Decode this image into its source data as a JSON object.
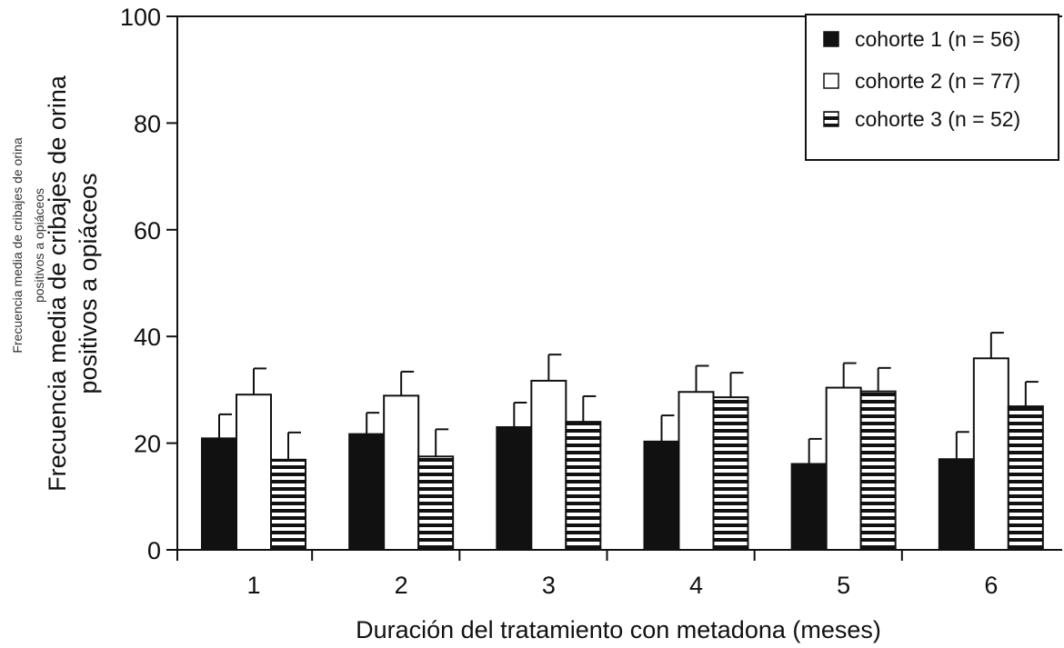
{
  "chart_data": {
    "type": "bar",
    "title": "",
    "xlabel": "Duración del tratamiento con metadona (meses)",
    "ylabel_lines": [
      "Frecuencia media de cribajes de orina",
      "positivos a opiáceos"
    ],
    "ylabel_small_lines": [
      "Frecuencia media de cribajes de orina",
      "positivos a opiáceos"
    ],
    "ylim": [
      0,
      100
    ],
    "yticks": [
      "0",
      "20",
      "40",
      "60",
      "80",
      "100"
    ],
    "categories": [
      "1",
      "2",
      "3",
      "4",
      "5",
      "6"
    ],
    "grid": false,
    "legend_position": "top-right",
    "series": [
      {
        "name": "cohorte 1 (n = 56)",
        "fill": "solid-black",
        "values": [
          20.9,
          21.7,
          23.0,
          20.3,
          16.1,
          17.0
        ],
        "error": [
          4.5,
          4.0,
          4.6,
          4.9,
          4.7,
          5.1
        ]
      },
      {
        "name": "cohorte 2 (n = 77)",
        "fill": "white",
        "values": [
          29.1,
          28.9,
          31.7,
          29.6,
          30.4,
          35.9
        ],
        "error": [
          4.9,
          4.5,
          4.9,
          4.9,
          4.6,
          4.8
        ]
      },
      {
        "name": "cohorte 3 (n = 52)",
        "fill": "horizontal-stripes",
        "values": [
          16.9,
          17.5,
          24.0,
          28.6,
          29.7,
          26.9
        ],
        "error": [
          5.1,
          5.1,
          4.8,
          4.6,
          4.4,
          4.6
        ]
      }
    ],
    "colors": {
      "ink": "#111111",
      "background": "#ffffff"
    }
  }
}
